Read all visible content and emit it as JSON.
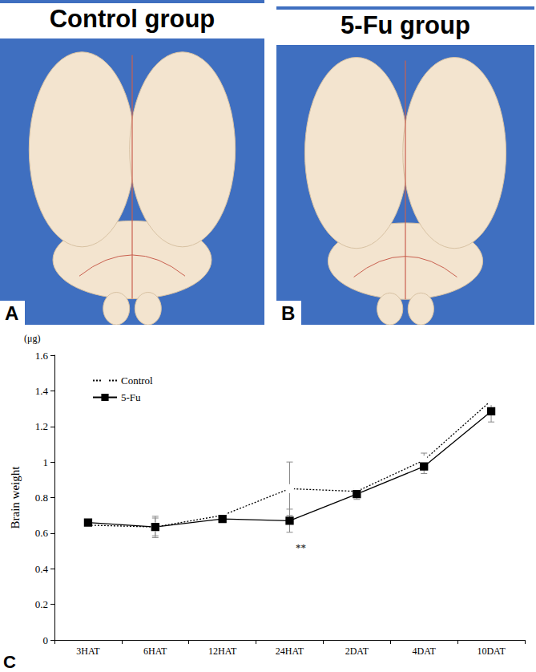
{
  "photos": [
    {
      "title": "Control group",
      "label": "A"
    },
    {
      "title": "5-Fu group",
      "label": "B"
    }
  ],
  "panel_label": "C",
  "chart_data": {
    "type": "line",
    "y_label": "Brain weight",
    "y_unit": "(μg)",
    "categories": [
      "3HAT",
      "6HAT",
      "12HAT",
      "24HAT",
      "2DAT",
      "4DAT",
      "10DAT"
    ],
    "series": [
      {
        "name": "Control",
        "color": "#000000",
        "marker": "open circle",
        "line_style": "dotted",
        "values": [
          0.645,
          0.635,
          0.7,
          0.85,
          0.835,
          1.01,
          1.345
        ],
        "errors": [
          0.01,
          0.06,
          0.01,
          0.15,
          0.01,
          0.04,
          0.01
        ]
      },
      {
        "name": "5-Fu",
        "color": "#000000",
        "marker": "square",
        "line_style": "solid",
        "values": [
          0.66,
          0.635,
          0.68,
          0.67,
          0.82,
          0.975,
          1.285
        ],
        "errors": [
          0.01,
          0.05,
          0.02,
          0.065,
          0.03,
          0.04,
          0.06
        ]
      }
    ],
    "annotations": [
      {
        "text": "**",
        "category": "24HAT",
        "series": "5-Fu"
      }
    ],
    "ylim": [
      0,
      1.6
    ],
    "yticks": [
      0,
      0.2,
      0.4,
      0.6,
      0.8,
      1,
      1.2,
      1.4,
      1.6
    ],
    "grid": false,
    "legend": "upper left"
  }
}
